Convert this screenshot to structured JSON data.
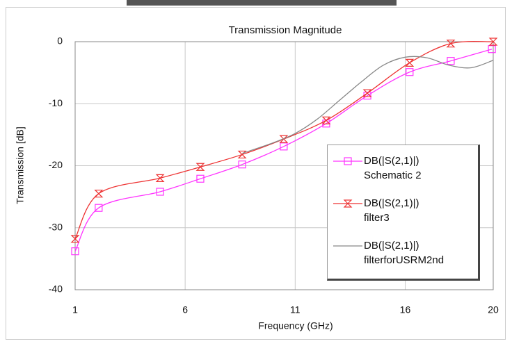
{
  "chart_data": {
    "type": "line",
    "title": "Transmission Magnitude",
    "x_label": "Frequency (GHz)",
    "y_label": "Transmission [dB]",
    "xlim": [
      1,
      20
    ],
    "xticks": [
      1,
      6,
      11,
      16,
      20
    ],
    "ylim": [
      -40,
      0
    ],
    "yticks": [
      0,
      -10,
      -20,
      -30,
      -40
    ],
    "grid": true,
    "series": [
      {
        "name": "DB(|S(2,1)|)\nSchematic 2",
        "color": "#ff33ff",
        "marker": "square",
        "x": [
          1,
          2.07,
          4.86,
          6.69,
          8.59,
          10.48,
          12.41,
          14.28,
          16.2,
          18.07,
          19.94
        ],
        "values": [
          -33.8,
          -26.8,
          -24.2,
          -22.1,
          -19.8,
          -16.9,
          -13.2,
          -8.7,
          -4.9,
          -3.1,
          -1.2
        ]
      },
      {
        "name": "DB(|S(2,1)|)\nfilter3",
        "color": "#ee3333",
        "marker": "hourglass",
        "x": [
          1,
          2.07,
          4.86,
          6.69,
          8.59,
          10.48,
          12.41,
          14.28,
          16.2,
          18.07,
          20
        ],
        "values": [
          -31.8,
          -24.5,
          -22.0,
          -20.2,
          -18.2,
          -15.7,
          -12.7,
          -8.3,
          -3.4,
          -0.3,
          0
        ]
      },
      {
        "name": "DB(|S(2,1)|)\nfilterforUSRM2nd",
        "color": "#888888",
        "marker": "none",
        "x": [
          8.6,
          10,
          11,
          12,
          13,
          14,
          15,
          16,
          17,
          18,
          19,
          20
        ],
        "values": [
          -18,
          -16.3,
          -14.8,
          -12.5,
          -9.5,
          -6.5,
          -3.8,
          -2.5,
          -2.6,
          -3.8,
          -4.2,
          -3.0
        ]
      }
    ]
  }
}
